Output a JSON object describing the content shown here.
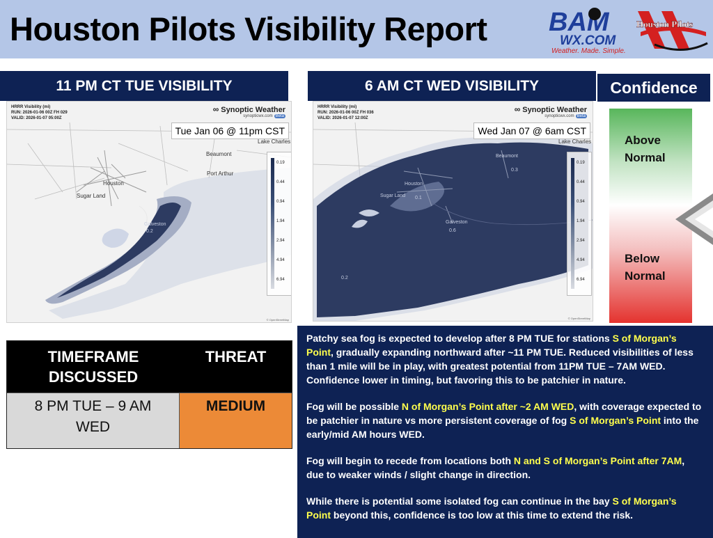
{
  "header": {
    "title": "Houston Pilots Visibility Report",
    "bam_logo": {
      "brand": "BAM",
      "domain": "WX.COM",
      "tagline": "Weather. Made. Simple."
    },
    "pilots_logo": {
      "text": "Houston Pilots"
    }
  },
  "colors": {
    "navy": "#0e2254",
    "header_bg": "#b4c6e7",
    "highlight_yellow": "#ffff4d",
    "threat_orange": "#ec8a37",
    "confidence_green": "#58b65b",
    "confidence_red": "#e4332f"
  },
  "panels": {
    "left_title": "11 PM CT TUE VISIBILITY",
    "right_title": "6 AM CT WED VISIBILITY",
    "confidence_title": "Confidence"
  },
  "maps": {
    "left": {
      "meta": [
        "HRRR Visibility (mi)",
        "RUN: 2026-01-06 00Z FH 029",
        "VALID: 2026-01-07 05:00Z"
      ],
      "brand": "Synoptic Weather",
      "brand_sub": "synopticwx.com",
      "badge": "Beta",
      "date_label": "Tue Jan 06 @ 11pm CST",
      "legend": [
        "0.19",
        "0.44",
        "0.94",
        "1.94",
        "2.94",
        "4.94",
        "6.94"
      ],
      "places": [
        "Lake Charles",
        "Beaumont",
        "Port Arthur",
        "Houston",
        "Sugar Land",
        "Galveston",
        "0.2"
      ],
      "attribution": "© OpenStreetMap"
    },
    "right": {
      "meta": [
        "HRRR Visibility (mi)",
        "RUN: 2026-01-06 00Z FH 036",
        "VALID: 2026-01-07 12:00Z"
      ],
      "brand": "Synoptic Weather",
      "brand_sub": "synopticwx.com",
      "badge": "Beta",
      "date_label": "Wed Jan 07 @ 6am CST",
      "legend": [
        "0.19",
        "0.44",
        "0.94",
        "1.94",
        "2.94",
        "4.94",
        "6.94"
      ],
      "places": [
        "Lake Charles",
        "Beaumont",
        "0.3",
        "Houston",
        "Sugar Land",
        "0.1",
        "Galveston",
        "0.2",
        "0.6"
      ],
      "attribution": "© OpenStreetMap"
    }
  },
  "confidence": {
    "above": [
      "Above",
      "Normal"
    ],
    "below": [
      "Below",
      "Normal"
    ]
  },
  "threat_table": {
    "col1_header": [
      "TIMEFRAME",
      "DISCUSSED"
    ],
    "col2_header": "THREAT",
    "timeframe": [
      "8 PM TUE – 9 AM",
      "WED"
    ],
    "threat": "MEDIUM"
  },
  "discussion": {
    "p1": {
      "a": "Patchy sea fog is expected to develop after 8 PM TUE for stations ",
      "b": "S of Morgan’s Point",
      "c": ", gradually expanding northward after ~11 PM TUE. Reduced visibilities of less than 1 mile will be in play, with greatest potential from 11PM TUE – 7AM WED. Confidence lower in timing, but favoring this to be patchier in nature."
    },
    "p2": {
      "a": "Fog will be possible ",
      "b": "N of Morgan’s Point after ~2 AM WED",
      "c": ", with coverage expected to be patchier in nature vs more persistent coverage of fog ",
      "d": "S of Morgan’s Point",
      "e": " into the early/mid AM hours WED."
    },
    "p3": {
      "a": "Fog will begin to recede from locations both ",
      "b": "N and S of Morgan’s Point after 7AM",
      "c": ", due to weaker winds / slight change in direction."
    },
    "p4": {
      "a": "While there is potential some isolated fog can continue in the bay ",
      "b": "S of Morgan’s Point",
      "c": " beyond this, confidence is too low at this time to extend the risk."
    }
  }
}
